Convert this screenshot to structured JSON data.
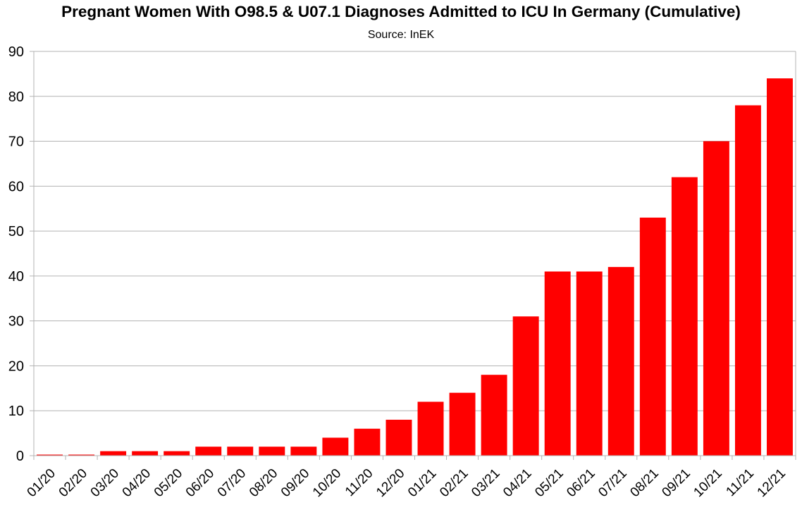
{
  "chart_data": {
    "type": "bar",
    "title": "Pregnant Women With O98.5 & U07.1 Diagnoses Admitted to ICU In Germany (Cumulative)",
    "subtitle": "Source: InEK",
    "xlabel": "",
    "ylabel": "",
    "ylim": [
      0,
      90
    ],
    "ytick_step": 10,
    "grid": true,
    "legend": "none",
    "bar_color": "#ff0000",
    "categories": [
      "01/20",
      "02/20",
      "03/20",
      "04/20",
      "05/20",
      "06/20",
      "07/20",
      "08/20",
      "09/20",
      "10/20",
      "11/20",
      "12/20",
      "01/21",
      "02/21",
      "03/21",
      "04/21",
      "05/21",
      "06/21",
      "07/21",
      "08/21",
      "09/21",
      "10/21",
      "11/21",
      "12/21"
    ],
    "values": [
      0,
      0,
      1,
      1,
      1,
      2,
      2,
      2,
      2,
      4,
      6,
      8,
      12,
      14,
      18,
      31,
      41,
      41,
      42,
      53,
      62,
      70,
      78,
      84
    ]
  }
}
